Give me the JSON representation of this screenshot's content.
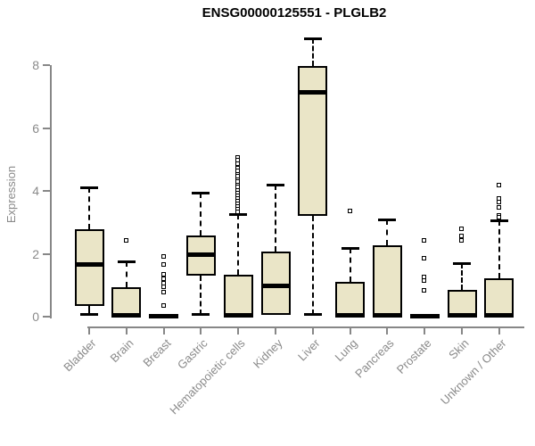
{
  "title": "ENSG00000125551 - PLGLB2",
  "chart_data": {
    "type": "boxplot",
    "title": "ENSG00000125551 - PLGLB2",
    "xlabel": "",
    "ylabel": "Expression",
    "ylim": [
      0,
      8.9
    ],
    "yticks": [
      0,
      2,
      4,
      6,
      8
    ],
    "grid": false,
    "legend": "none",
    "axis_color": "#878787",
    "label_color": "#8a8a8a",
    "box_fill": "#EAE5C7",
    "box_border": "#000000",
    "categories": [
      "Bladder",
      "Brain",
      "Breast",
      "Gastric",
      "Hematopoietic cells",
      "Kidney",
      "Liver",
      "Lung",
      "Pancreas",
      "Prostate",
      "Skin",
      "Unknown / Other"
    ],
    "series": [
      {
        "category": "Bladder",
        "low": 0.05,
        "q1": 0.35,
        "median": 1.67,
        "q3": 2.78,
        "high": 4.1,
        "outliers": []
      },
      {
        "category": "Brain",
        "low": 0,
        "q1": 0,
        "median": 0.05,
        "q3": 0.95,
        "high": 1.75,
        "outliers": [
          2.4
        ]
      },
      {
        "category": "Breast",
        "low": 0,
        "q1": 0,
        "median": 0.04,
        "q3": 0.08,
        "high": 0.08,
        "outliers": [
          1.9,
          1.65,
          1.33,
          1.2,
          1.05,
          0.95,
          0.77,
          0.34
        ]
      },
      {
        "category": "Gastric",
        "low": 0.05,
        "q1": 1.3,
        "median": 2.0,
        "q3": 2.58,
        "high": 3.95,
        "outliers": []
      },
      {
        "category": "Hematopoietic cells",
        "low": 0,
        "q1": 0,
        "median": 0.07,
        "q3": 1.33,
        "high": 3.25,
        "outliers": [
          5.05,
          4.97,
          4.85,
          4.72,
          4.62,
          4.52,
          4.45,
          4.35,
          4.27,
          4.18,
          4.1,
          4.0,
          3.92,
          3.83,
          3.75,
          3.65,
          3.57,
          3.48,
          3.4,
          3.33
        ]
      },
      {
        "category": "Kidney",
        "low": 0.05,
        "q1": 0.05,
        "median": 1.0,
        "q3": 2.07,
        "high": 4.2,
        "outliers": []
      },
      {
        "category": "Liver",
        "low": 0.05,
        "q1": 3.2,
        "median": 7.15,
        "q3": 7.97,
        "high": 8.85,
        "outliers": []
      },
      {
        "category": "Lung",
        "low": 0,
        "q1": 0,
        "median": 0.05,
        "q3": 1.1,
        "high": 2.18,
        "outliers": [
          3.35
        ]
      },
      {
        "category": "Pancreas",
        "low": 0,
        "q1": 0,
        "median": 0.05,
        "q3": 2.27,
        "high": 3.1,
        "outliers": []
      },
      {
        "category": "Prostate",
        "low": 0,
        "q1": 0,
        "median": 0.04,
        "q3": 0.08,
        "high": 0.08,
        "outliers": [
          2.4,
          1.85,
          1.25,
          1.13,
          0.82
        ]
      },
      {
        "category": "Skin",
        "low": 0,
        "q1": 0,
        "median": 0.05,
        "q3": 0.85,
        "high": 1.7,
        "outliers": [
          2.78,
          2.55,
          2.4
        ]
      },
      {
        "category": "Unknown / Other",
        "low": 0,
        "q1": 0,
        "median": 0.05,
        "q3": 1.22,
        "high": 3.05,
        "outliers": [
          4.17,
          3.75,
          3.63,
          3.46,
          3.2,
          3.15
        ]
      }
    ]
  }
}
